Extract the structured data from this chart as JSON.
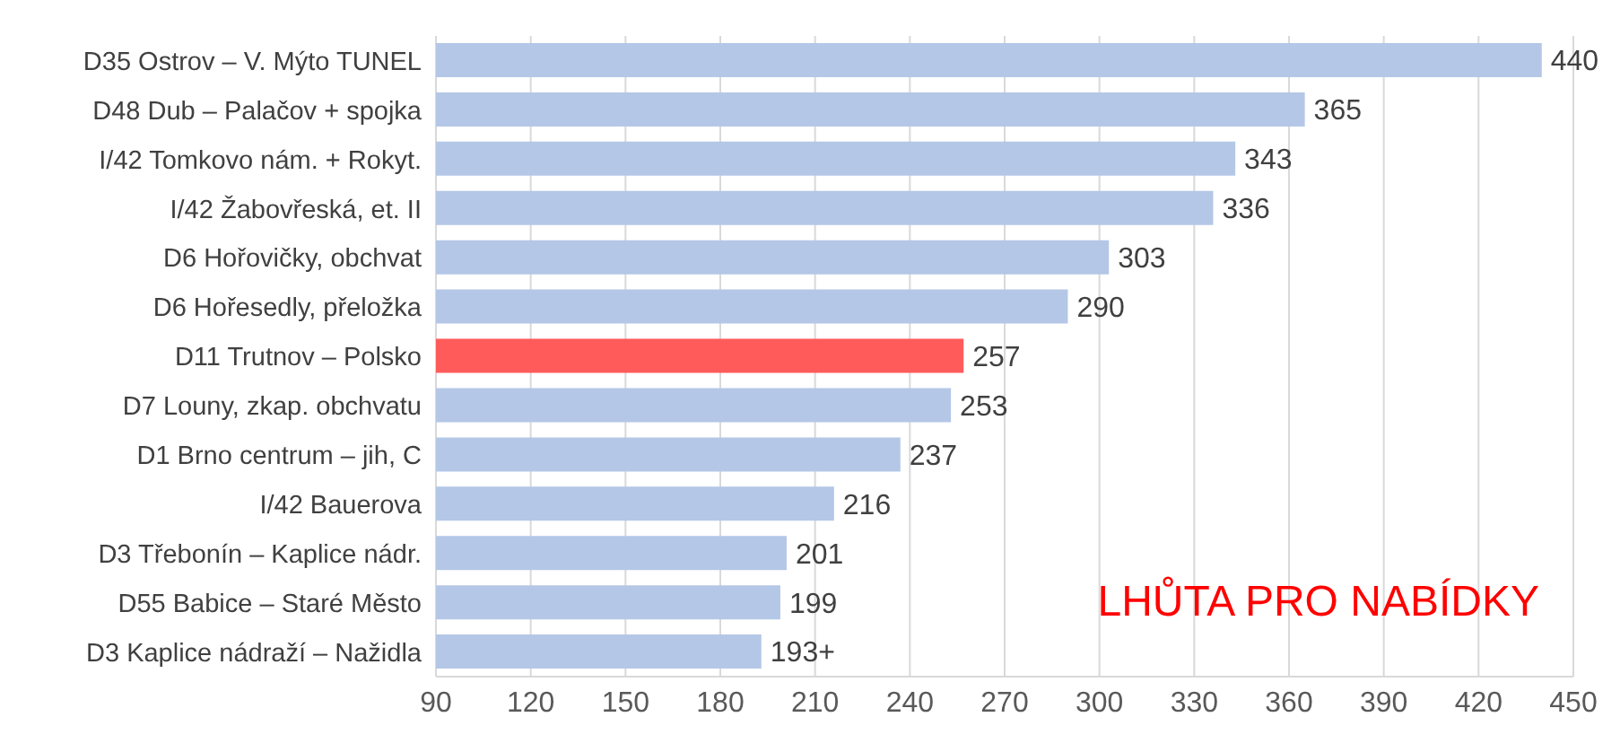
{
  "chart_data": {
    "type": "bar",
    "orientation": "horizontal",
    "categories": [
      "D35 Ostrov – V. Mýto TUNEL",
      "D48 Dub – Palačov + spojka",
      "I/42 Tomkovo nám. + Rokyt.",
      "I/42 Žabovřeská, et. II",
      "D6 Hořovičky, obchvat",
      "D6 Hořesedly, přeložka",
      "D11 Trutnov – Polsko",
      "D7 Louny, zkap. obchvatu",
      "D1 Brno centrum – jih, C",
      "I/42 Bauerova",
      "D3 Třebonín – Kaplice nádr.",
      "D55 Babice – Staré Město",
      "D3 Kaplice nádraží – Nažidla"
    ],
    "values": [
      440,
      365,
      343,
      336,
      303,
      290,
      257,
      253,
      237,
      216,
      201,
      199,
      193
    ],
    "value_labels": [
      "440",
      "365",
      "343",
      "336",
      "303",
      "290",
      "257",
      "253",
      "237",
      "216",
      "201",
      "199",
      "193+"
    ],
    "colors": [
      "#b4c7e7",
      "#b4c7e7",
      "#b4c7e7",
      "#b4c7e7",
      "#b4c7e7",
      "#b4c7e7",
      "#ff5b5b",
      "#b4c7e7",
      "#b4c7e7",
      "#b4c7e7",
      "#b4c7e7",
      "#b4c7e7",
      "#b4c7e7"
    ],
    "xlim": [
      90,
      450
    ],
    "xticks": [
      90,
      120,
      150,
      180,
      210,
      240,
      270,
      300,
      330,
      360,
      390,
      420,
      450
    ],
    "grid": "x",
    "annotations": [
      "LHŮTA PRO NABÍDKY"
    ]
  }
}
